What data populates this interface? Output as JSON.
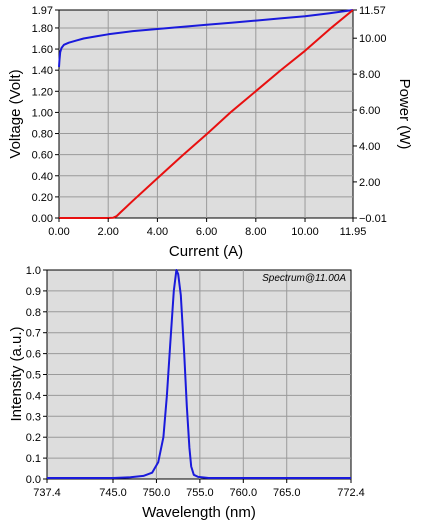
{
  "chart_data": [
    {
      "type": "line",
      "xlabel": "Current (A)",
      "ylabel": "Voltage (Volt)",
      "y2label": "Power (W)",
      "xlim": [
        0.0,
        11.95
      ],
      "ylim": [
        0.0,
        1.97
      ],
      "y2lim": [
        -0.01,
        11.57
      ],
      "xticks": [
        "0.00",
        "2.00",
        "4.00",
        "6.00",
        "8.00",
        "10.00",
        "11.95"
      ],
      "yticks": [
        "0.00",
        "0.20",
        "0.40",
        "0.60",
        "0.80",
        "1.00",
        "1.20",
        "1.40",
        "1.60",
        "1.80",
        "1.97"
      ],
      "y2ticks": [
        "−0.01",
        "2.00",
        "4.00",
        "6.00",
        "8.00",
        "10.00",
        "11.57"
      ],
      "grid": true,
      "series": [
        {
          "axis": "left",
          "color": "#1a1adc",
          "x": [
            0.0,
            0.02,
            0.05,
            0.1,
            0.2,
            0.4,
            0.7,
            1.0,
            1.5,
            2.0,
            3.0,
            4.0,
            5.0,
            6.0,
            7.0,
            8.0,
            9.0,
            10.0,
            11.0,
            11.95
          ],
          "y": [
            1.43,
            1.5,
            1.57,
            1.61,
            1.64,
            1.66,
            1.68,
            1.7,
            1.72,
            1.74,
            1.77,
            1.79,
            1.81,
            1.83,
            1.85,
            1.87,
            1.89,
            1.91,
            1.94,
            1.97
          ]
        },
        {
          "axis": "right",
          "color": "#e81010",
          "x": [
            0.0,
            1.0,
            2.0,
            2.2,
            2.35,
            2.5,
            3.0,
            4.0,
            5.0,
            6.0,
            7.0,
            8.0,
            9.0,
            10.0,
            11.0,
            11.95
          ],
          "y": [
            -0.01,
            -0.01,
            -0.01,
            0.0,
            0.1,
            0.3,
            0.95,
            2.2,
            3.45,
            4.65,
            5.9,
            7.05,
            8.2,
            9.3,
            10.5,
            11.57
          ]
        }
      ]
    },
    {
      "type": "line",
      "xlabel": "Wavelength (nm)",
      "ylabel": "Intensity (a.u.)",
      "annotation": "Spectrum@11.00A",
      "xlim": [
        737.4,
        772.4
      ],
      "ylim": [
        0.0,
        1.0
      ],
      "xticks": [
        "737.4",
        "745.0",
        "750.0",
        "755.0",
        "760.0",
        "765.0",
        "772.4"
      ],
      "yticks": [
        "0.0",
        "0.1",
        "0.2",
        "0.3",
        "0.4",
        "0.5",
        "0.6",
        "0.7",
        "0.8",
        "0.9",
        "1.0"
      ],
      "grid": true,
      "series": [
        {
          "color": "#1a1adc",
          "x": [
            737.4,
            745.0,
            747.0,
            748.5,
            749.5,
            750.2,
            750.8,
            751.2,
            751.6,
            752.0,
            752.3,
            752.5,
            752.8,
            753.2,
            753.5,
            753.8,
            754.0,
            754.3,
            754.8,
            756.0,
            760.0,
            772.4
          ],
          "y": [
            0.005,
            0.005,
            0.008,
            0.015,
            0.03,
            0.08,
            0.2,
            0.4,
            0.65,
            0.9,
            1.0,
            0.98,
            0.88,
            0.6,
            0.35,
            0.15,
            0.06,
            0.02,
            0.01,
            0.005,
            0.005,
            0.005
          ]
        }
      ]
    }
  ]
}
